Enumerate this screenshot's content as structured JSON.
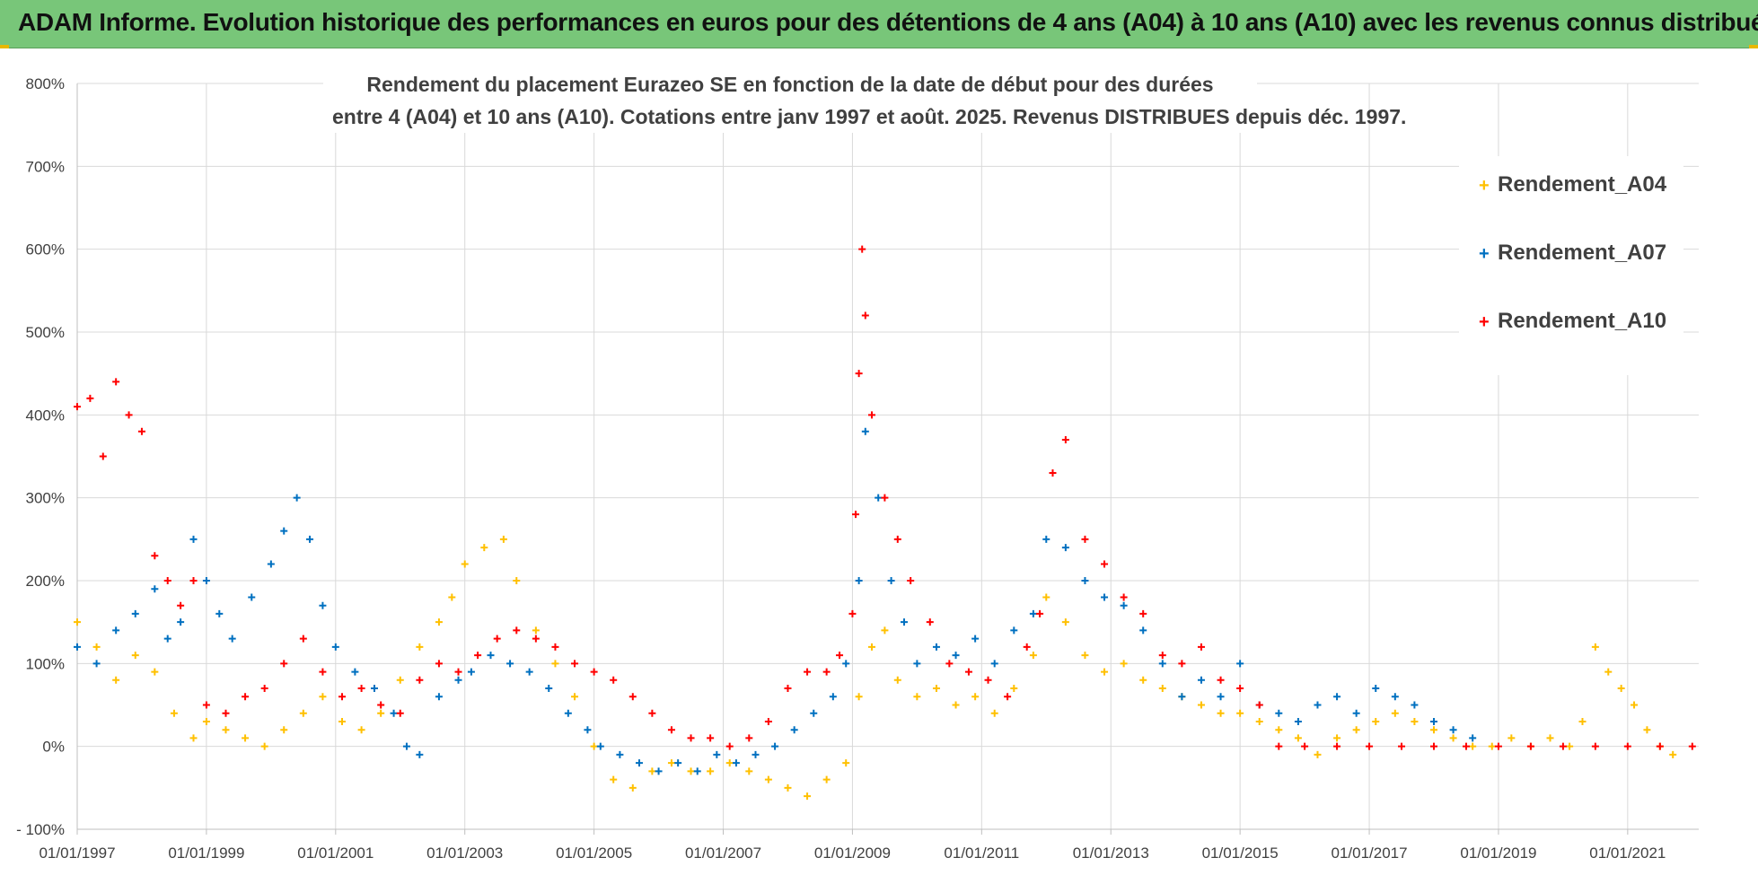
{
  "banner": {
    "title": "ADAM Informe. Evolution historique des performances en euros pour des détentions de 4 ans (A04) à 10 ans (A10) avec les revenus connus distribués",
    "background": "#78c679"
  },
  "chart_data": {
    "type": "scatter",
    "title_line1": "Rendement du placement Eurazeo SE en fonction de la date de début pour des durées",
    "title_line2": "entre 4 (A04) et 10 ans (A10). Cotations entre janv 1997 et août. 2025. Revenus DISTRIBUES depuis déc. 1997.",
    "x_tick_labels": [
      "01/01/1997",
      "01/01/1999",
      "01/01/2001",
      "01/01/2003",
      "01/01/2005",
      "01/01/2007",
      "01/01/2009",
      "01/01/2011",
      "01/01/2013",
      "01/01/2015",
      "01/01/2017",
      "01/01/2019",
      "01/01/2021"
    ],
    "y_tick_labels": [
      "800%",
      "700%",
      "600%",
      "500%",
      "400%",
      "300%",
      "200%",
      "100%",
      "0%",
      "- 100%"
    ],
    "xlim": [
      1997.0,
      2022.1
    ],
    "ylim": [
      -100,
      800
    ],
    "grid": true,
    "legend_position": "top-right",
    "series": [
      {
        "name": "Rendement_A04",
        "color": "#ffc000",
        "x": [
          1997.0,
          1997.3,
          1997.6,
          1997.9,
          1998.2,
          1998.5,
          1998.8,
          1999.0,
          1999.3,
          1999.6,
          1999.9,
          2000.2,
          2000.5,
          2000.8,
          2001.1,
          2001.4,
          2001.7,
          2002.0,
          2002.3,
          2002.6,
          2002.8,
          2003.0,
          2003.3,
          2003.6,
          2003.8,
          2004.1,
          2004.4,
          2004.7,
          2005.0,
          2005.3,
          2005.6,
          2005.9,
          2006.2,
          2006.5,
          2006.8,
          2007.1,
          2007.4,
          2007.7,
          2008.0,
          2008.3,
          2008.6,
          2008.9,
          2009.1,
          2009.3,
          2009.5,
          2009.7,
          2010.0,
          2010.3,
          2010.6,
          2010.9,
          2011.2,
          2011.5,
          2011.8,
          2012.0,
          2012.3,
          2012.6,
          2012.9,
          2013.2,
          2013.5,
          2013.8,
          2014.1,
          2014.4,
          2014.7,
          2015.0,
          2015.3,
          2015.6,
          2015.9,
          2016.2,
          2016.5,
          2016.8,
          2017.1,
          2017.4,
          2017.7,
          2018.0,
          2018.3,
          2018.6,
          2018.9,
          2019.2,
          2019.5,
          2019.8,
          2020.1,
          2020.3,
          2020.5,
          2020.7,
          2020.9,
          2021.1,
          2021.3,
          2021.5,
          2021.7
        ],
        "y": [
          150,
          120,
          80,
          110,
          90,
          40,
          10,
          30,
          20,
          10,
          0,
          20,
          40,
          60,
          30,
          20,
          40,
          80,
          120,
          150,
          180,
          220,
          240,
          250,
          200,
          140,
          100,
          60,
          0,
          -40,
          -50,
          -30,
          -20,
          -30,
          -30,
          -20,
          -30,
          -40,
          -50,
          -60,
          -40,
          -20,
          60,
          120,
          140,
          80,
          60,
          70,
          50,
          60,
          40,
          70,
          110,
          180,
          150,
          110,
          90,
          100,
          80,
          70,
          60,
          50,
          40,
          40,
          30,
          20,
          10,
          -10,
          10,
          20,
          30,
          40,
          30,
          20,
          10,
          0,
          0,
          10,
          0,
          10,
          0,
          30,
          120,
          90,
          70,
          50,
          20,
          0,
          -10
        ]
      },
      {
        "name": "Rendement_A07",
        "color": "#0070c0",
        "x": [
          1997.0,
          1997.3,
          1997.6,
          1997.9,
          1998.2,
          1998.4,
          1998.6,
          1998.8,
          1999.0,
          1999.2,
          1999.4,
          1999.7,
          2000.0,
          2000.2,
          2000.4,
          2000.6,
          2000.8,
          2001.0,
          2001.3,
          2001.6,
          2001.9,
          2002.1,
          2002.3,
          2002.6,
          2002.9,
          2003.1,
          2003.4,
          2003.7,
          2004.0,
          2004.3,
          2004.6,
          2004.9,
          2005.1,
          2005.4,
          2005.7,
          2006.0,
          2006.3,
          2006.6,
          2006.9,
          2007.2,
          2007.5,
          2007.8,
          2008.1,
          2008.4,
          2008.7,
          2008.9,
          2009.1,
          2009.2,
          2009.4,
          2009.6,
          2009.8,
          2010.0,
          2010.3,
          2010.6,
          2010.9,
          2011.2,
          2011.5,
          2011.8,
          2012.0,
          2012.3,
          2012.6,
          2012.9,
          2013.2,
          2013.5,
          2013.8,
          2014.1,
          2014.4,
          2014.7,
          2015.0,
          2015.3,
          2015.6,
          2015.9,
          2016.2,
          2016.5,
          2016.8,
          2017.1,
          2017.4,
          2017.7,
          2018.0,
          2018.3,
          2018.6
        ],
        "y": [
          120,
          100,
          140,
          160,
          190,
          130,
          150,
          250,
          200,
          160,
          130,
          180,
          220,
          260,
          300,
          250,
          170,
          120,
          90,
          70,
          40,
          0,
          -10,
          60,
          80,
          90,
          110,
          100,
          90,
          70,
          40,
          20,
          0,
          -10,
          -20,
          -30,
          -20,
          -30,
          -10,
          -20,
          -10,
          0,
          20,
          40,
          60,
          100,
          200,
          380,
          300,
          200,
          150,
          100,
          120,
          110,
          130,
          100,
          140,
          160,
          250,
          240,
          200,
          180,
          170,
          140,
          100,
          60,
          80,
          60,
          100,
          50,
          40,
          30,
          50,
          60,
          40,
          70,
          60,
          50,
          30,
          20,
          10
        ]
      },
      {
        "name": "Rendement_A10",
        "color": "#ff0000",
        "x": [
          1997.0,
          1997.2,
          1997.4,
          1997.6,
          1997.8,
          1998.0,
          1998.2,
          1998.4,
          1998.6,
          1998.8,
          1999.0,
          1999.3,
          1999.6,
          1999.9,
          2000.2,
          2000.5,
          2000.8,
          2001.1,
          2001.4,
          2001.7,
          2002.0,
          2002.3,
          2002.6,
          2002.9,
          2003.2,
          2003.5,
          2003.8,
          2004.1,
          2004.4,
          2004.7,
          2005.0,
          2005.3,
          2005.6,
          2005.9,
          2006.2,
          2006.5,
          2006.8,
          2007.1,
          2007.4,
          2007.7,
          2008.0,
          2008.3,
          2008.6,
          2008.8,
          2009.0,
          2009.05,
          2009.1,
          2009.15,
          2009.2,
          2009.3,
          2009.5,
          2009.7,
          2009.9,
          2010.2,
          2010.5,
          2010.8,
          2011.1,
          2011.4,
          2011.7,
          2011.9,
          2012.1,
          2012.3,
          2012.6,
          2012.9,
          2013.2,
          2013.5,
          2013.8,
          2014.1,
          2014.4,
          2014.7,
          2015.0,
          2015.3,
          2015.6,
          2016.0,
          2016.5,
          2017.0,
          2017.5,
          2018.0,
          2018.5,
          2019.0,
          2019.5,
          2020.0,
          2020.5,
          2021.0,
          2021.5,
          2022.0
        ],
        "y": [
          410,
          420,
          350,
          440,
          400,
          380,
          230,
          200,
          170,
          200,
          50,
          40,
          60,
          70,
          100,
          130,
          90,
          60,
          70,
          50,
          40,
          80,
          100,
          90,
          110,
          130,
          140,
          130,
          120,
          100,
          90,
          80,
          60,
          40,
          20,
          10,
          10,
          0,
          10,
          30,
          70,
          90,
          90,
          110,
          160,
          280,
          450,
          600,
          520,
          400,
          300,
          250,
          200,
          150,
          100,
          90,
          80,
          60,
          120,
          160,
          330,
          370,
          250,
          220,
          180,
          160,
          110,
          100,
          120,
          80,
          70,
          50,
          0,
          0,
          0,
          0,
          0,
          0,
          0,
          0,
          0,
          0,
          0,
          0,
          0,
          0
        ]
      }
    ]
  }
}
